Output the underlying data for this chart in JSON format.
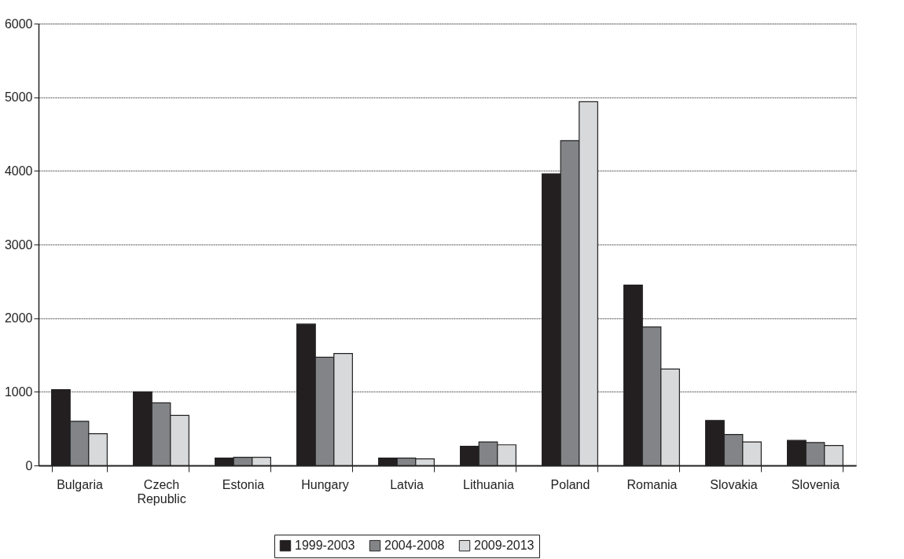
{
  "chart_data": {
    "type": "bar",
    "categories": [
      "Bulgaria",
      "Czech Republic",
      "Estonia",
      "Hungary",
      "Latvia",
      "Lithuania",
      "Poland",
      "Romania",
      "Slovakia",
      "Slovenia"
    ],
    "series": [
      {
        "name": "1999-2003",
        "color": "#231f20",
        "values": [
          1030,
          1000,
          100,
          1920,
          100,
          260,
          3960,
          2450,
          610,
          340
        ]
      },
      {
        "name": "2004-2008",
        "color": "#838487",
        "values": [
          600,
          850,
          110,
          1470,
          100,
          320,
          4410,
          1880,
          420,
          310
        ]
      },
      {
        "name": "2009-2013",
        "color": "#d8d9da",
        "values": [
          430,
          680,
          110,
          1520,
          90,
          280,
          4940,
          1310,
          320,
          270
        ]
      }
    ],
    "ylim": [
      0,
      6000
    ],
    "yticks": [
      0,
      1000,
      2000,
      3000,
      4000,
      5000,
      6000
    ],
    "grid": "y",
    "legend": "bottom"
  }
}
